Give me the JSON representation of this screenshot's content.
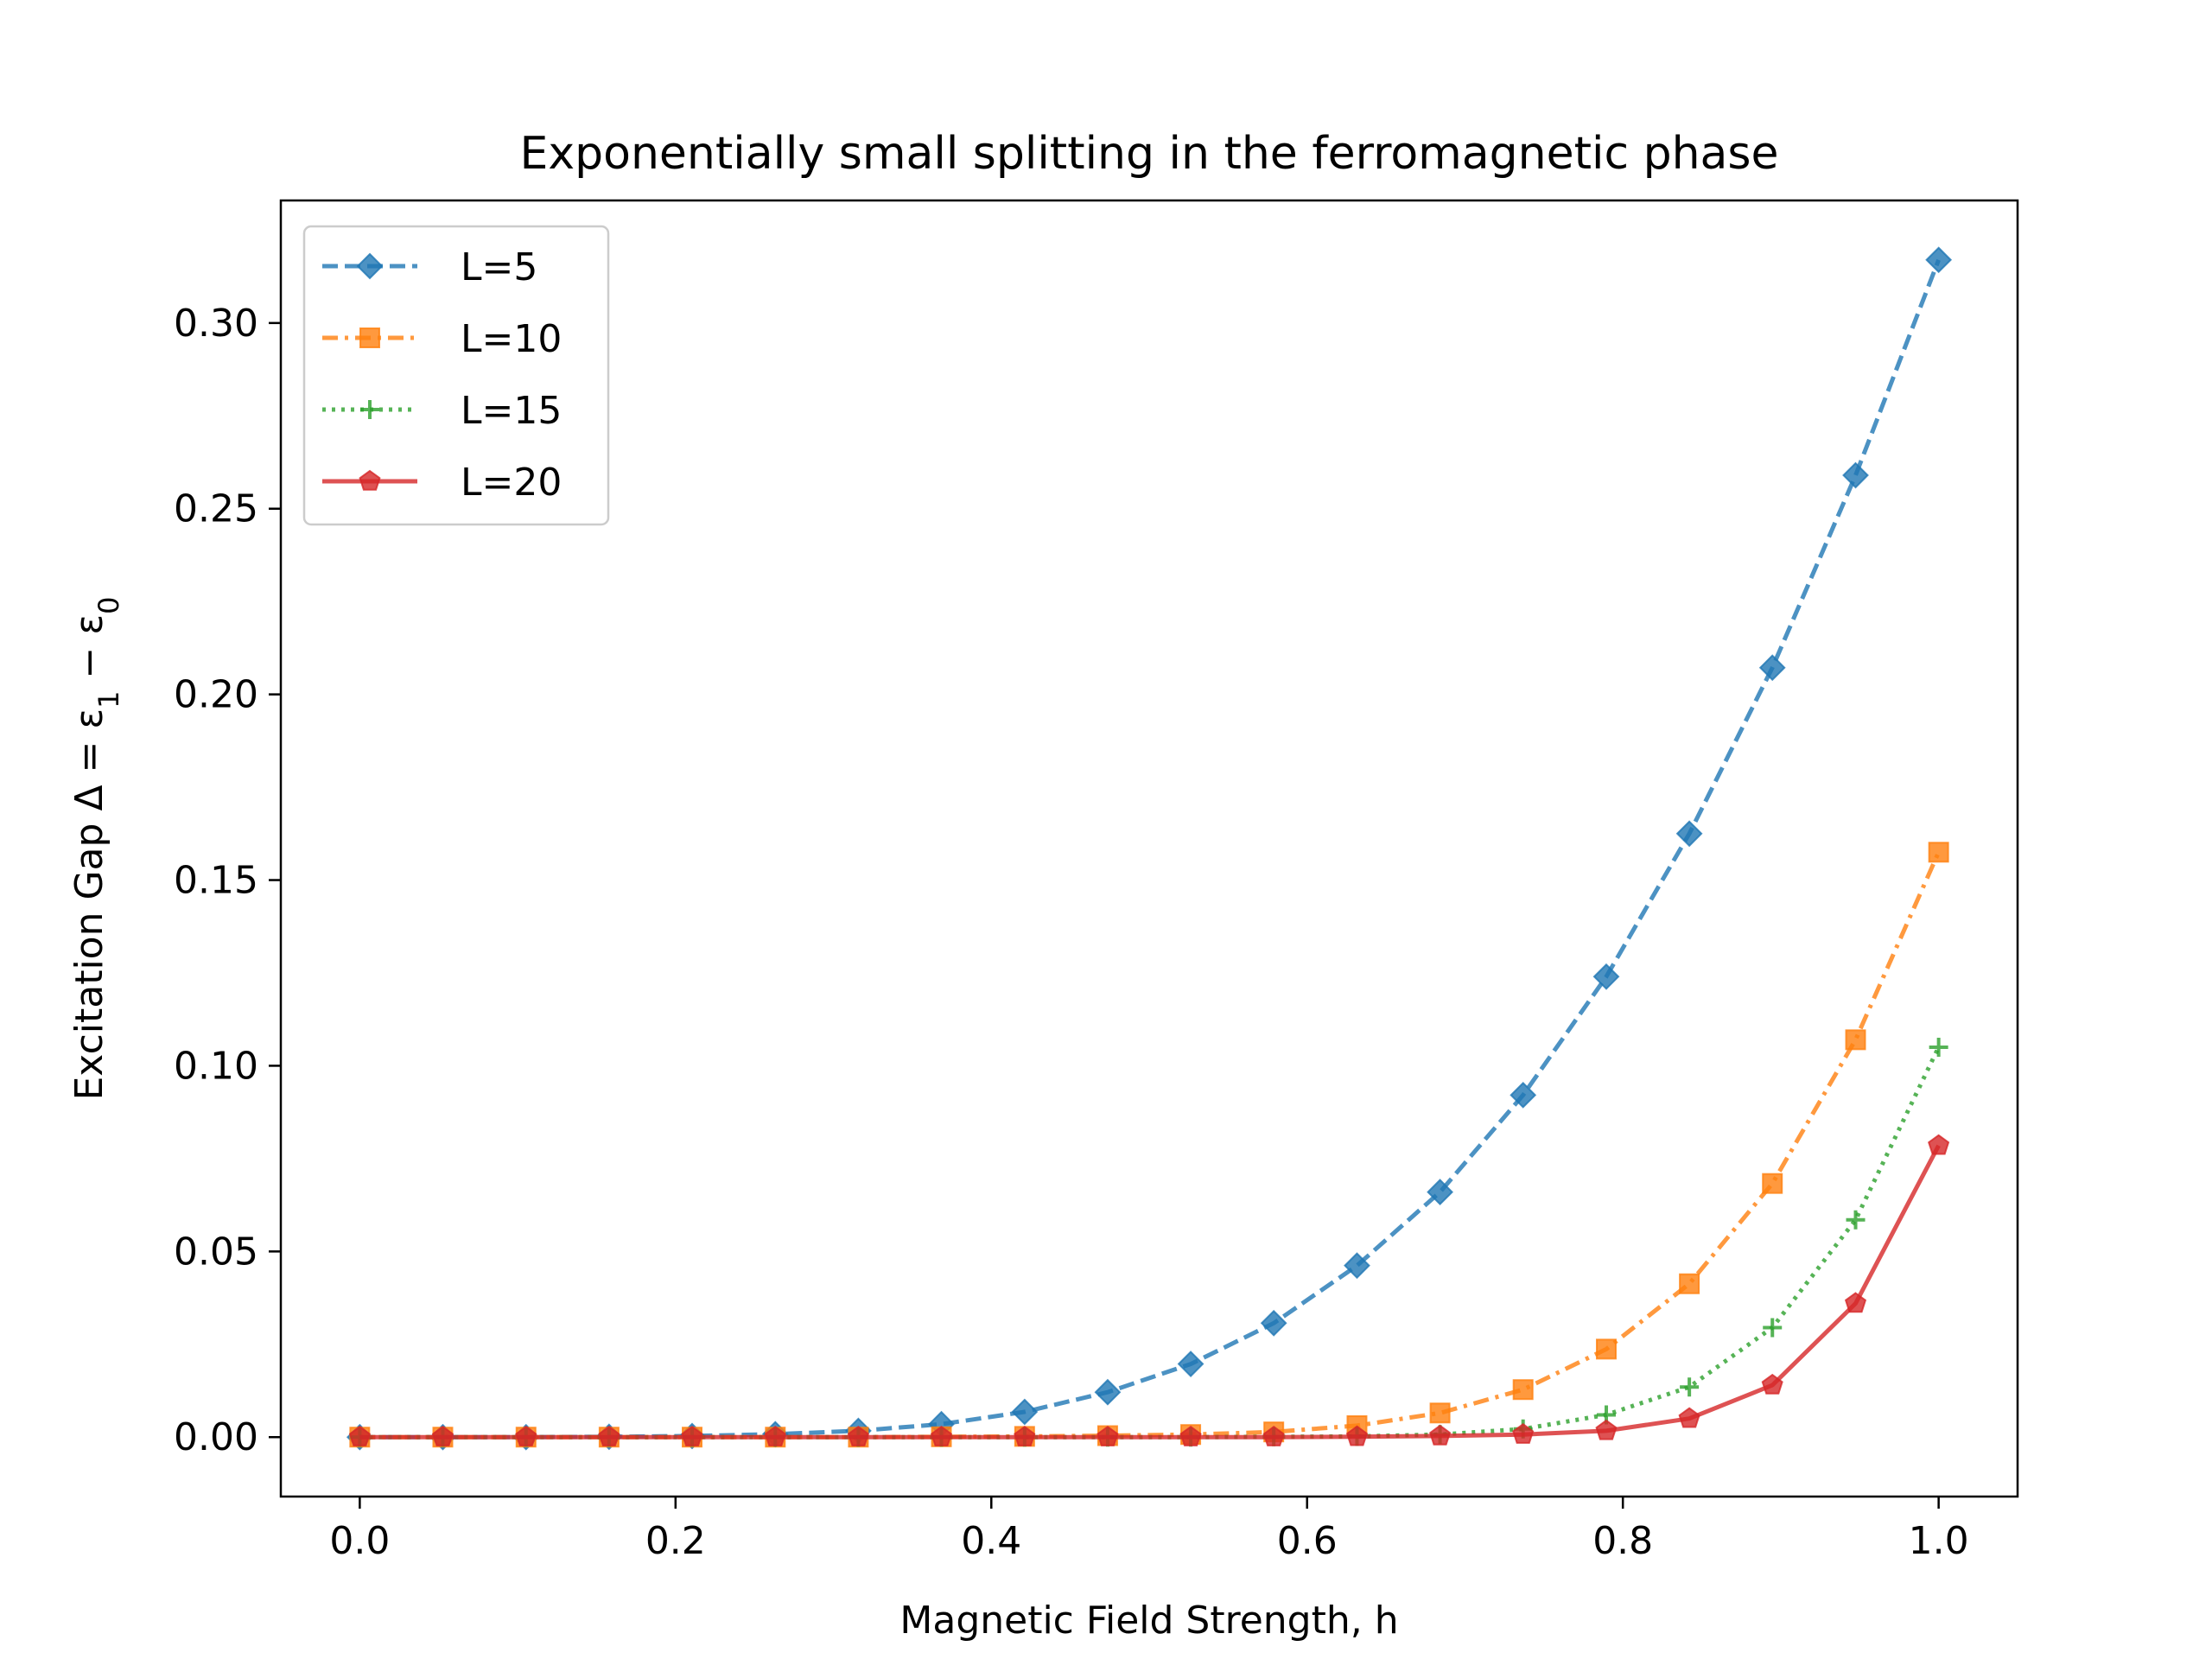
{
  "chart_data": {
    "type": "line",
    "title": "Exponentially small splitting in the ferromagnetic phase",
    "xlabel": "Magnetic Field Strength, h",
    "ylabel_parts": {
      "prefix": "Excitation Gap Δ = ε",
      "sub1": "1",
      "mid": " − ε",
      "sub2": "0"
    },
    "xlim": [
      -0.05,
      1.05
    ],
    "ylim": [
      -0.016,
      0.333
    ],
    "xticks": [
      0.0,
      0.2,
      0.4,
      0.6,
      0.8,
      1.0
    ],
    "xtick_labels": [
      "0.0",
      "0.2",
      "0.4",
      "0.6",
      "0.8",
      "1.0"
    ],
    "yticks": [
      0.0,
      0.05,
      0.1,
      0.15,
      0.2,
      0.25,
      0.3
    ],
    "ytick_labels": [
      "0.00",
      "0.05",
      "0.10",
      "0.15",
      "0.20",
      "0.25",
      "0.30"
    ],
    "grid": false,
    "legend_position": "top-left",
    "x": [
      0.0,
      0.0526,
      0.1053,
      0.1579,
      0.2105,
      0.2632,
      0.3158,
      0.3684,
      0.4211,
      0.4737,
      0.5263,
      0.5789,
      0.6316,
      0.6842,
      0.7368,
      0.7895,
      0.8421,
      0.8947,
      0.9474,
      1.0
    ],
    "series": [
      {
        "name": "L=5",
        "color": "#1f77b4",
        "linestyle": "dashed",
        "marker": "diamond",
        "values": [
          0.0,
          0.0,
          0.0,
          0.0001,
          0.0003,
          0.0008,
          0.0017,
          0.0035,
          0.0068,
          0.0121,
          0.0197,
          0.0307,
          0.0462,
          0.066,
          0.0921,
          0.124,
          0.1625,
          0.2072,
          0.259,
          0.317
        ]
      },
      {
        "name": "L=10",
        "color": "#ff7f0e",
        "linestyle": "dashdot",
        "marker": "square",
        "values": [
          0.0,
          0.0,
          0.0,
          0.0,
          0.0,
          0.0,
          0.0,
          0.0001,
          0.0002,
          0.0004,
          0.0007,
          0.0014,
          0.0031,
          0.0065,
          0.0128,
          0.0237,
          0.0413,
          0.0683,
          0.107,
          0.1575
        ]
      },
      {
        "name": "L=15",
        "color": "#2ca02c",
        "linestyle": "dotted",
        "marker": "plus",
        "values": [
          0.0,
          0.0,
          0.0,
          0.0,
          0.0,
          0.0,
          0.0,
          0.0,
          0.0,
          0.0,
          0.0,
          0.0001,
          0.0002,
          0.0007,
          0.0022,
          0.006,
          0.0135,
          0.0295,
          0.0585,
          0.105
        ]
      },
      {
        "name": "L=20",
        "color": "#d62728",
        "linestyle": "solid",
        "marker": "pentagon",
        "values": [
          0.0,
          0.0,
          0.0,
          0.0,
          0.0,
          0.0,
          0.0,
          0.0,
          0.0,
          0.0,
          0.0,
          0.0,
          0.0001,
          0.0003,
          0.0007,
          0.0017,
          0.005,
          0.014,
          0.036,
          0.0785
        ]
      }
    ]
  }
}
